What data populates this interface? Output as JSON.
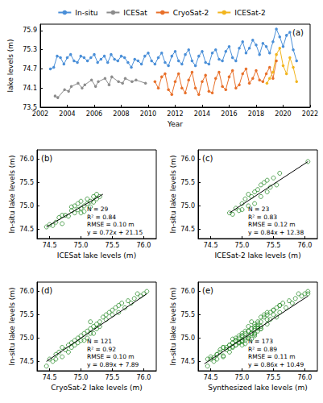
{
  "chart_data": [
    {
      "type": "line",
      "title": "(a)",
      "x_label": "Year",
      "y_label": "lake levels (m)",
      "xlim": [
        2002,
        2022
      ],
      "xticks": [
        2002,
        2004,
        2006,
        2008,
        2010,
        2012,
        2014,
        2016,
        2018,
        2020,
        2022
      ],
      "ylim": [
        73.5,
        76.1
      ],
      "yticks": [
        73.5,
        74.1,
        74.7,
        75.3,
        75.9
      ],
      "legend": "top",
      "series": [
        {
          "name": "In-situ",
          "color": "#4a8fd8",
          "marker": "circle",
          "x": [
            2002.75,
            2003.0,
            2003.25,
            2003.5,
            2003.75,
            2004.0,
            2004.25,
            2004.5,
            2004.75,
            2005.0,
            2005.25,
            2005.5,
            2005.75,
            2006.0,
            2006.25,
            2006.5,
            2006.75,
            2007.0,
            2007.25,
            2007.5,
            2007.75,
            2008.0,
            2008.25,
            2008.5,
            2008.75,
            2009.0,
            2009.25,
            2009.5,
            2009.75,
            2010.0,
            2010.25,
            2010.5,
            2010.75,
            2011.0,
            2011.25,
            2011.5,
            2011.75,
            2012.0,
            2012.25,
            2012.5,
            2012.75,
            2013.0,
            2013.25,
            2013.5,
            2013.75,
            2014.0,
            2014.25,
            2014.5,
            2014.75,
            2015.0,
            2015.25,
            2015.5,
            2015.75,
            2016.0,
            2016.25,
            2016.5,
            2016.75,
            2017.0,
            2017.25,
            2017.5,
            2017.75,
            2018.0,
            2018.25,
            2018.5,
            2018.75,
            2019.0,
            2019.25,
            2019.5,
            2019.75,
            2020.0,
            2020.25,
            2020.5,
            2020.75,
            2021.0
          ],
          "values": [
            74.7,
            74.75,
            75.1,
            75.05,
            74.85,
            75.05,
            75.15,
            74.95,
            74.9,
            75.1,
            75.05,
            74.95,
            75.05,
            75.15,
            74.9,
            75.0,
            75.1,
            74.9,
            75.15,
            75.0,
            74.95,
            75.1,
            75.05,
            74.9,
            74.75,
            75.0,
            74.95,
            74.85,
            75.1,
            75.2,
            74.95,
            74.85,
            75.05,
            75.2,
            74.9,
            74.8,
            75.1,
            75.25,
            74.95,
            74.85,
            75.15,
            75.3,
            74.95,
            74.8,
            75.1,
            75.25,
            74.9,
            74.85,
            75.2,
            75.3,
            75.0,
            74.95,
            75.25,
            75.4,
            75.05,
            74.95,
            75.35,
            75.55,
            75.2,
            75.35,
            75.6,
            75.45,
            75.15,
            75.5,
            75.4,
            75.2,
            75.55,
            75.95,
            75.7,
            75.4,
            75.75,
            75.85,
            75.3,
            74.95
          ]
        },
        {
          "name": "ICESat",
          "color": "#8c8c8c",
          "marker": "circle",
          "x": [
            2003.1,
            2003.3,
            2003.8,
            2004.1,
            2004.3,
            2004.8,
            2005.1,
            2005.3,
            2005.8,
            2006.1,
            2006.3,
            2006.8,
            2007.1,
            2007.3,
            2007.8,
            2008.1,
            2008.3,
            2008.8,
            2009.1,
            2009.8
          ],
          "values": [
            73.85,
            73.8,
            74.05,
            74.0,
            74.15,
            74.25,
            74.1,
            74.2,
            74.35,
            74.15,
            74.3,
            74.4,
            74.2,
            74.45,
            74.3,
            74.25,
            74.4,
            74.3,
            74.35,
            74.25
          ]
        },
        {
          "name": "CryoSat-2",
          "color": "#e8702a",
          "marker": "circle",
          "x": [
            2010.5,
            2010.75,
            2011.0,
            2011.25,
            2011.5,
            2011.75,
            2012.0,
            2012.25,
            2012.5,
            2012.75,
            2013.0,
            2013.25,
            2013.5,
            2013.75,
            2014.0,
            2014.25,
            2014.5,
            2014.75,
            2015.0,
            2015.25,
            2015.5,
            2015.75,
            2016.0,
            2016.25,
            2016.5,
            2016.75,
            2017.0,
            2017.25,
            2017.5,
            2017.75,
            2018.0,
            2018.25,
            2018.5,
            2018.75,
            2019.0,
            2019.25,
            2019.5
          ],
          "values": [
            74.3,
            74.1,
            74.45,
            74.55,
            74.05,
            73.9,
            74.3,
            74.55,
            74.1,
            73.95,
            74.35,
            74.6,
            74.1,
            73.9,
            74.3,
            74.5,
            74.0,
            73.95,
            74.4,
            74.6,
            74.15,
            74.05,
            74.45,
            74.65,
            74.1,
            74.2,
            74.55,
            74.7,
            74.25,
            74.4,
            74.65,
            74.35,
            74.3,
            74.55,
            74.75,
            74.4,
            74.95
          ]
        },
        {
          "name": "ICESat-2",
          "color": "#f2b51d",
          "marker": "circle",
          "x": [
            2018.8,
            2019.0,
            2019.25,
            2019.5,
            2019.75,
            2020.0,
            2020.25,
            2020.5,
            2020.75,
            2021.0
          ],
          "values": [
            74.25,
            74.4,
            74.6,
            75.15,
            75.35,
            74.8,
            74.55,
            75.05,
            74.75,
            74.3
          ]
        }
      ]
    },
    {
      "type": "scatter",
      "title": "(b)",
      "x_label": "ICESat lake levels (m)",
      "y_label": "In-situ lake levels (m)",
      "xlim": [
        74.3,
        76.2
      ],
      "xticks": [
        74.5,
        {
          "value": 75,
          "label": "75.0"
        },
        75.5,
        {
          "value": 76,
          "label": "76.0"
        }
      ],
      "ylim": [
        74.3,
        76.2
      ],
      "yticks": [
        74.5,
        {
          "value": 75,
          "label": "75.0"
        },
        75.5,
        {
          "value": 76,
          "label": "76.0"
        }
      ],
      "color": "#2f8f2f",
      "marker": "circle_open",
      "x": [
        74.45,
        74.5,
        74.55,
        74.6,
        74.65,
        74.7,
        74.75,
        74.8,
        74.85,
        74.9,
        74.9,
        74.95,
        74.95,
        75.0,
        75.0,
        75.05,
        75.05,
        75.1,
        75.1,
        75.15,
        75.15,
        75.2,
        75.2,
        75.25,
        75.25,
        75.3,
        74.85,
        75.0,
        74.7
      ],
      "values": [
        74.55,
        74.6,
        74.58,
        74.65,
        74.75,
        74.62,
        74.8,
        74.78,
        74.9,
        74.85,
        75.0,
        74.92,
        75.05,
        74.95,
        75.1,
        75.0,
        74.88,
        75.05,
        75.15,
        75.1,
        74.98,
        75.2,
        75.08,
        75.15,
        75.25,
        75.2,
        74.98,
        74.85,
        74.8
      ],
      "fit_line": {
        "x": [
          74.45,
          75.35
        ],
        "values": [
          74.55,
          75.25
        ]
      },
      "annotations": [
        "N = 29",
        "R² = 0.84",
        "RMSE = 0.10 m",
        "y = 0.72x + 21.15"
      ]
    },
    {
      "type": "scatter",
      "title": "(c)",
      "x_label": "ICESat-2 lake levels (m)",
      "y_label": "In-situ lake levels (m)",
      "xlim": [
        74.3,
        76.2
      ],
      "xticks": [
        74.5,
        {
          "value": 75,
          "label": "75.0"
        },
        75.5,
        {
          "value": 76,
          "label": "76.0"
        }
      ],
      "ylim": [
        74.3,
        76.2
      ],
      "yticks": [
        74.5,
        {
          "value": 75,
          "label": "75.0"
        },
        75.5,
        {
          "value": 76,
          "label": "76.0"
        }
      ],
      "color": "#2f8f2f",
      "marker": "circle_open",
      "x": [
        74.8,
        74.85,
        74.9,
        74.95,
        75.0,
        75.0,
        75.05,
        75.1,
        75.1,
        75.15,
        75.2,
        75.2,
        75.25,
        75.3,
        75.3,
        75.35,
        75.4,
        75.4,
        75.45,
        75.5,
        75.55,
        75.6,
        76.05
      ],
      "values": [
        74.85,
        74.82,
        74.95,
        74.9,
        75.05,
        74.92,
        75.15,
        75.0,
        75.25,
        75.2,
        75.05,
        75.3,
        75.35,
        75.2,
        75.45,
        75.5,
        75.3,
        75.55,
        75.4,
        75.6,
        75.45,
        75.7,
        75.95
      ],
      "fit_line": {
        "x": [
          74.8,
          76.05
        ],
        "values": [
          74.85,
          75.95
        ]
      },
      "annotations": [
        "N = 23",
        "R² = 0.83",
        "RMSE = 0.12 m",
        "y = 0.84x + 12.38"
      ]
    },
    {
      "type": "scatter",
      "title": "(d)",
      "x_label": "CryoSat-2 lake levels (m)",
      "y_label": "In-situ lake levels (m)",
      "xlim": [
        74.3,
        76.2
      ],
      "xticks": [
        74.5,
        {
          "value": 75,
          "label": "75.0"
        },
        75.5,
        {
          "value": 76,
          "label": "76.0"
        }
      ],
      "ylim": [
        74.3,
        76.2
      ],
      "yticks": [
        74.5,
        {
          "value": 75,
          "label": "75.0"
        },
        75.5,
        {
          "value": 76,
          "label": "76.0"
        }
      ],
      "color": "#2f8f2f",
      "marker": "circle_open",
      "x": [
        74.45,
        74.5,
        74.55,
        74.6,
        74.6,
        74.65,
        74.7,
        74.7,
        74.75,
        74.8,
        74.8,
        74.85,
        74.85,
        74.9,
        74.9,
        74.95,
        74.95,
        75.0,
        75.0,
        75.05,
        75.05,
        75.1,
        75.1,
        75.15,
        75.15,
        75.2,
        75.2,
        75.25,
        75.25,
        75.3,
        75.3,
        75.35,
        75.4,
        75.4,
        75.45,
        75.5,
        75.5,
        75.55,
        75.6,
        75.6,
        75.65,
        75.7,
        75.75,
        75.8,
        75.85,
        75.9,
        75.95,
        76.0,
        76.05,
        75.15
      ],
      "values": [
        74.4,
        74.55,
        74.5,
        74.65,
        74.55,
        74.7,
        74.6,
        74.8,
        74.75,
        74.7,
        74.85,
        74.9,
        74.8,
        74.95,
        74.85,
        75.0,
        74.9,
        75.05,
        74.95,
        75.1,
        74.95,
        75.15,
        75.0,
        75.2,
        75.1,
        75.25,
        75.1,
        75.3,
        75.2,
        75.35,
        75.25,
        75.45,
        75.4,
        75.5,
        75.55,
        75.5,
        75.6,
        75.65,
        75.55,
        75.7,
        75.75,
        75.65,
        75.8,
        75.75,
        75.85,
        75.95,
        75.9,
        75.95,
        76.0,
        75.35
      ],
      "fit_line": {
        "x": [
          74.45,
          76.05
        ],
        "values": [
          74.5,
          75.95
        ]
      },
      "annotations": [
        "N = 121",
        "R² = 0.92",
        "RMSE = 0.10 m",
        "y = 0.89x + 7.89"
      ]
    },
    {
      "type": "scatter",
      "title": "(e)",
      "x_label": "Synthesized lake levels (m)",
      "y_label": "In-situ lake levels (m)",
      "xlim": [
        74.3,
        76.2
      ],
      "xticks": [
        74.5,
        {
          "value": 75,
          "label": "75.0"
        },
        75.5,
        {
          "value": 76,
          "label": "76.0"
        }
      ],
      "ylim": [
        74.3,
        76.2
      ],
      "yticks": [
        74.5,
        {
          "value": 75,
          "label": "75.0"
        },
        75.5,
        {
          "value": 76,
          "label": "76.0"
        }
      ],
      "color": "#2f8f2f",
      "marker": "circle_open",
      "x": [
        74.45,
        74.5,
        74.55,
        74.6,
        74.65,
        74.7,
        74.75,
        74.8,
        74.85,
        74.9,
        74.9,
        74.95,
        74.95,
        75.0,
        75.0,
        75.05,
        75.05,
        75.1,
        75.1,
        75.15,
        75.15,
        75.2,
        75.2,
        75.25,
        75.25,
        75.3,
        74.85,
        75.0,
        74.7,
        74.8,
        74.85,
        74.9,
        74.95,
        75.0,
        75.0,
        75.05,
        75.1,
        75.1,
        75.15,
        75.2,
        75.2,
        75.25,
        75.3,
        75.3,
        75.35,
        75.4,
        75.4,
        75.45,
        75.5,
        75.55,
        75.6,
        76.05,
        74.45,
        74.5,
        74.55,
        74.6,
        74.6,
        74.65,
        74.7,
        74.7,
        74.75,
        74.8,
        74.8,
        74.85,
        74.85,
        74.9,
        74.9,
        74.95,
        74.95,
        75.0,
        75.0,
        75.05,
        75.05,
        75.1,
        75.1,
        75.15,
        75.15,
        75.2,
        75.2,
        75.25,
        75.25,
        75.3,
        75.3,
        75.35,
        75.4,
        75.4,
        75.45,
        75.5,
        75.5,
        75.55,
        75.6,
        75.6,
        75.65,
        75.7,
        75.75,
        75.8,
        75.85,
        75.9,
        75.95,
        76.0,
        76.05,
        75.15
      ],
      "values": [
        74.55,
        74.6,
        74.58,
        74.65,
        74.75,
        74.62,
        74.8,
        74.78,
        74.9,
        74.85,
        75.0,
        74.92,
        75.05,
        74.95,
        75.1,
        75.0,
        74.88,
        75.05,
        75.15,
        75.1,
        74.98,
        75.2,
        75.08,
        75.15,
        75.25,
        75.2,
        74.98,
        74.85,
        74.8,
        74.85,
        74.82,
        74.95,
        74.9,
        75.05,
        74.92,
        75.15,
        75.0,
        75.25,
        75.2,
        75.05,
        75.3,
        75.35,
        75.2,
        75.45,
        75.5,
        75.3,
        75.55,
        75.4,
        75.6,
        75.45,
        75.7,
        75.95,
        74.4,
        74.55,
        74.5,
        74.65,
        74.55,
        74.7,
        74.6,
        74.8,
        74.75,
        74.7,
        74.85,
        74.9,
        74.8,
        74.95,
        74.85,
        75.0,
        74.9,
        75.05,
        74.95,
        75.1,
        74.95,
        75.15,
        75.0,
        75.2,
        75.1,
        75.25,
        75.1,
        75.3,
        75.2,
        75.35,
        75.25,
        75.45,
        75.4,
        75.5,
        75.55,
        75.5,
        75.6,
        75.65,
        75.55,
        75.7,
        75.75,
        75.65,
        75.8,
        75.75,
        75.85,
        75.95,
        75.9,
        75.95,
        76.0,
        75.35
      ],
      "fit_line": {
        "x": [
          74.4,
          76.05
        ],
        "values": [
          74.45,
          75.9
        ]
      },
      "annotations": [
        "N = 173",
        "R² = 0.89",
        "RMSE = 0.11 m",
        "y = 0.86x + 10.49"
      ]
    }
  ]
}
